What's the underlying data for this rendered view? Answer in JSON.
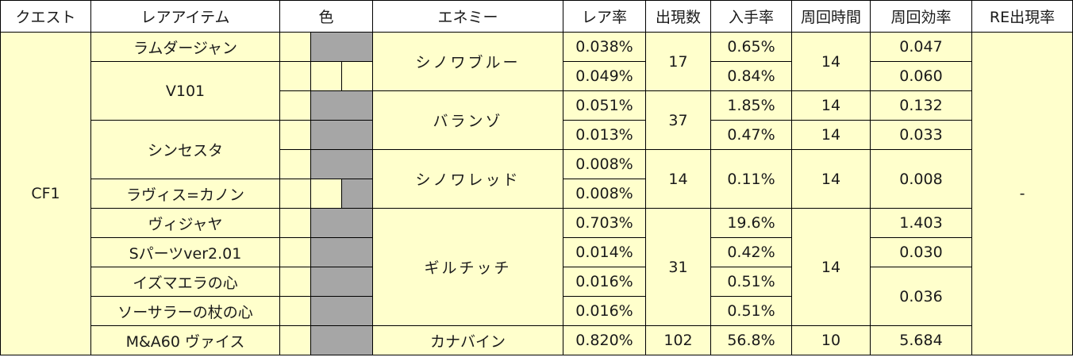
{
  "headers": [
    "クエスト",
    "レアアイテム",
    "色",
    "エネミー",
    "レア率",
    "出現数",
    "入手率",
    "周回時間",
    "周回効率",
    "RE出現率"
  ],
  "quest": "CF1",
  "re_rate": "-",
  "items": [
    {
      "name": "ラムダージャン",
      "rare": "0.038%",
      "get": "0.65%",
      "eff": "0.047",
      "colors": [
        "#ffff00"
      ]
    },
    {
      "name": "V101",
      "rare": "0.049%",
      "get": "0.84%",
      "eff": "0.060",
      "colors": [
        "#548235",
        "#92d050",
        "#ffc000"
      ]
    },
    {
      "name": "V101",
      "rare": "0.051%",
      "get": "1.85%",
      "eff": "0.132",
      "colors": [
        "#ffff00"
      ]
    },
    {
      "name": "シンセスタ",
      "rare": "0.013%",
      "get": "0.47%",
      "eff": "0.033",
      "colors": [
        "#00ffff"
      ]
    },
    {
      "name": "シンセスタ",
      "rare": "0.008%",
      "colors": [
        "#cc66ff"
      ]
    },
    {
      "name": "ラヴィス=カノン",
      "rare": "0.008%",
      "colors": [
        "#0070c0",
        "#ffc000"
      ]
    },
    {
      "name": "ヴィジャヤ",
      "rare": "0.703%",
      "get": "19.6%",
      "eff": "1.403",
      "colors": [
        "#0070c0"
      ]
    },
    {
      "name": "Sパーツver2.01",
      "rare": "0.014%",
      "get": "0.42%",
      "eff": "0.030",
      "colors": [
        "#ffc000"
      ]
    },
    {
      "name": "イズマエラの心",
      "rare": "0.016%",
      "get": "0.51%",
      "colors": [
        "#ffccff"
      ]
    },
    {
      "name": "ソーサラーの杖の心",
      "rare": "0.016%",
      "get": "0.51%",
      "colors": [
        "#ff0000"
      ]
    },
    {
      "name": "M&A60 ヴァイス",
      "rare": "0.820%",
      "get": "56.8%",
      "eff": "5.684",
      "colors": [
        "#cc66ff"
      ]
    }
  ],
  "enemies": [
    {
      "name": "シノワブルー",
      "count": "17",
      "time": "14"
    },
    {
      "name": "バランゾ",
      "count": "37",
      "time": "14",
      "time2": "14"
    },
    {
      "name": "シノワレッド",
      "count": "14",
      "get": "0.11%",
      "time": "14",
      "eff": "0.008"
    },
    {
      "name": "ギルチッチ",
      "count": "31",
      "time": "14",
      "eff_shared": "0.036"
    },
    {
      "name": "カナバイン",
      "count": "102",
      "time": "10"
    }
  ]
}
